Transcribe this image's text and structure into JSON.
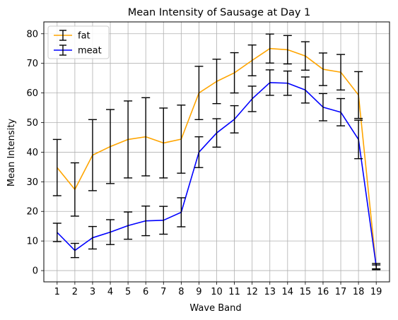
{
  "chart_data": {
    "type": "line",
    "title": "Mean Intensity of Sausage at Day 1",
    "xlabel": "Wave Band",
    "ylabel": "Mean Intensity",
    "x": [
      1,
      2,
      3,
      4,
      5,
      6,
      7,
      8,
      9,
      10,
      11,
      12,
      13,
      14,
      15,
      16,
      17,
      18,
      19
    ],
    "x_tick_labels": [
      "1",
      "2",
      "3",
      "4",
      "5",
      "6",
      "7",
      "8",
      "9",
      "10",
      "11",
      "12",
      "13",
      "14",
      "15",
      "16",
      "17",
      "18",
      "19"
    ],
    "y_ticks": [
      0,
      10,
      20,
      30,
      40,
      50,
      60,
      70,
      80
    ],
    "y_tick_labels": [
      "0",
      "10",
      "20",
      "30",
      "40",
      "50",
      "60",
      "70",
      "80"
    ],
    "xlim": [
      0.25,
      19.75
    ],
    "ylim": [
      -3.8,
      84
    ],
    "grid": true,
    "legend_position": "upper-left",
    "series": [
      {
        "name": "fat",
        "color": "#FFA500",
        "values": [
          34.8,
          27.4,
          39.0,
          41.9,
          44.3,
          45.2,
          43.1,
          44.4,
          60.0,
          63.9,
          66.8,
          71.0,
          75.0,
          74.6,
          72.5,
          68.0,
          67.0,
          59.3,
          1.1
        ],
        "errors": [
          9.5,
          9.0,
          12.0,
          12.5,
          13.0,
          13.2,
          11.8,
          11.5,
          9.0,
          7.5,
          6.8,
          5.2,
          4.9,
          4.8,
          4.8,
          5.5,
          6.0,
          7.9,
          0.8
        ]
      },
      {
        "name": "meat",
        "color": "#0000FF",
        "values": [
          12.9,
          6.8,
          11.1,
          13.0,
          15.2,
          16.8,
          17.0,
          19.7,
          40.0,
          46.5,
          51.1,
          58.0,
          63.5,
          63.3,
          61.0,
          55.2,
          53.5,
          44.3,
          1.5
        ],
        "errors": [
          3.1,
          2.4,
          3.8,
          4.2,
          4.6,
          5.0,
          4.7,
          4.9,
          5.2,
          4.8,
          4.6,
          4.3,
          4.3,
          4.1,
          4.4,
          4.6,
          4.6,
          6.5,
          0.9
        ]
      }
    ]
  }
}
